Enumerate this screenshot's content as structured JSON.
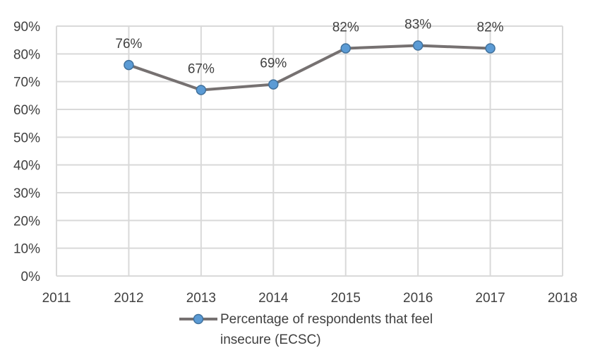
{
  "chart_data": {
    "type": "line",
    "title": "",
    "xlabel": "",
    "ylabel": "",
    "x": [
      2012,
      2013,
      2014,
      2015,
      2016,
      2017
    ],
    "xlim": [
      2011,
      2018
    ],
    "xticks": [
      "2011",
      "2012",
      "2013",
      "2014",
      "2015",
      "2016",
      "2017",
      "2018"
    ],
    "ylim": [
      0,
      90
    ],
    "yticks": [
      "0%",
      "10%",
      "20%",
      "30%",
      "40%",
      "50%",
      "60%",
      "70%",
      "80%",
      "90%"
    ],
    "grid": true,
    "legend_position": "bottom",
    "series": [
      {
        "name": "Percentage of respondents that feel insecure (ECSC)",
        "legend_lines": [
          "Percentage of respondents that feel",
          "insecure (ECSC)"
        ],
        "values": [
          76,
          67,
          69,
          82,
          83,
          82
        ],
        "labels": [
          "76%",
          "67%",
          "69%",
          "82%",
          "83%",
          "82%"
        ],
        "line_color": "#767171",
        "marker_color": "#5B9BD5"
      }
    ]
  }
}
